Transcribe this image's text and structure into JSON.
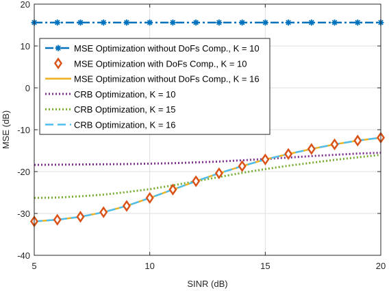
{
  "chart_data": {
    "type": "line",
    "xlabel": "SINR (dB)",
    "ylabel": "MSE (dB)",
    "xlim": [
      5,
      20
    ],
    "ylim": [
      -40,
      20
    ],
    "xticks": [
      5,
      10,
      15,
      20
    ],
    "yticks": [
      -40,
      -30,
      -20,
      -10,
      0,
      10,
      20
    ],
    "grid": true,
    "legend_position": "top-left",
    "series": [
      {
        "name": "MSE Optimization without DoFs Comp., K = 10",
        "color": "#0072bd",
        "style": "dashdot",
        "marker": "asterisk",
        "x": [
          5,
          6,
          7,
          8,
          9,
          10,
          11,
          12,
          13,
          14,
          15,
          16,
          17,
          18,
          19,
          20
        ],
        "y": [
          15.6,
          15.6,
          15.6,
          15.6,
          15.6,
          15.6,
          15.6,
          15.6,
          15.6,
          15.6,
          15.6,
          15.6,
          15.6,
          15.6,
          15.6,
          15.6
        ]
      },
      {
        "name": "MSE Optimization with DoFs Comp., K = 10",
        "color": "#d95319",
        "style": "none",
        "marker": "diamond",
        "x": [
          5,
          6,
          7,
          8,
          9,
          10,
          11,
          12,
          13,
          14,
          15,
          16,
          17,
          18,
          19,
          20
        ],
        "y": [
          -31.9,
          -31.5,
          -30.8,
          -29.7,
          -28.2,
          -26.3,
          -24.3,
          -22.3,
          -20.4,
          -18.7,
          -17.1,
          -15.8,
          -14.6,
          -13.5,
          -12.6,
          -11.9
        ]
      },
      {
        "name": "MSE Optimization without DoFs Comp., K = 16",
        "color": "#edb120",
        "style": "solid",
        "marker": "none",
        "x": [
          5,
          6,
          7,
          8,
          9,
          10,
          11,
          12,
          13,
          14,
          15,
          16,
          17,
          18,
          19,
          20
        ],
        "y": [
          -31.9,
          -31.5,
          -30.8,
          -29.7,
          -28.2,
          -26.3,
          -24.3,
          -22.3,
          -20.4,
          -18.7,
          -17.1,
          -15.8,
          -14.6,
          -13.5,
          -12.6,
          -11.9
        ]
      },
      {
        "name": "CRB Optimization, K = 10",
        "color": "#7e2f8e",
        "style": "dotted",
        "marker": "none",
        "x": [
          5,
          7,
          9,
          11,
          13,
          15,
          17,
          19,
          20
        ],
        "y": [
          -18.4,
          -18.3,
          -18.2,
          -18.0,
          -17.6,
          -17.0,
          -16.3,
          -15.7,
          -15.5
        ]
      },
      {
        "name": "CRB Optimization, K = 15",
        "color": "#77ac30",
        "style": "dotted",
        "marker": "none",
        "x": [
          5,
          6,
          7,
          8,
          9,
          10,
          11,
          12,
          13,
          14,
          15,
          16,
          17,
          18,
          19,
          20
        ],
        "y": [
          -26.3,
          -26.2,
          -25.9,
          -25.5,
          -24.9,
          -24.2,
          -23.3,
          -22.3,
          -21.3,
          -20.3,
          -19.4,
          -18.6,
          -17.9,
          -17.2,
          -16.6,
          -16.0
        ]
      },
      {
        "name": "CRB Optimization, K = 16",
        "color": "#4dbeee",
        "style": "dashed",
        "marker": "none",
        "x": [
          5,
          6,
          7,
          8,
          9,
          10,
          11,
          12,
          13,
          14,
          15,
          16,
          17,
          18,
          19,
          20
        ],
        "y": [
          -31.9,
          -31.5,
          -30.8,
          -29.7,
          -28.2,
          -26.3,
          -24.3,
          -22.3,
          -20.4,
          -18.7,
          -17.1,
          -15.8,
          -14.6,
          -13.5,
          -12.6,
          -11.9
        ]
      }
    ]
  }
}
